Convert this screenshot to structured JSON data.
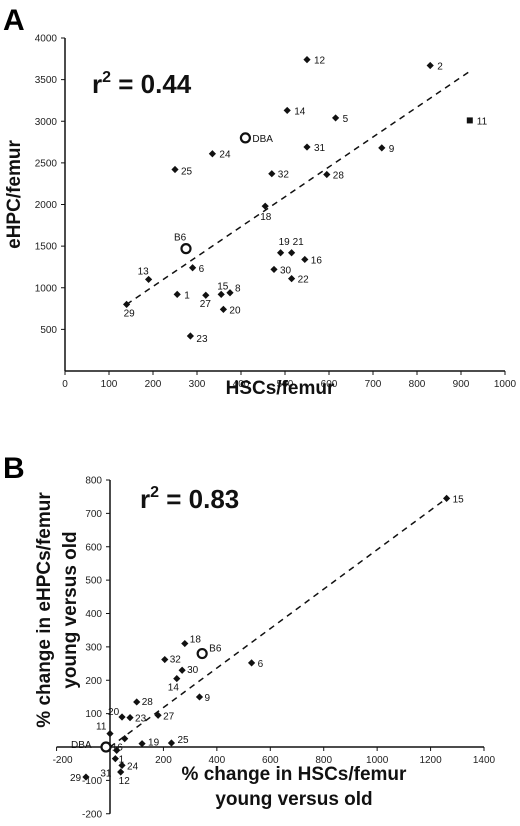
{
  "chart_data": [
    {
      "panel": "A",
      "type": "scatter",
      "xlabel": "HSCs/femur",
      "ylabel": "eHPC/femur",
      "annotation": "r",
      "annotation_sup": "2",
      "annotation_value": " = 0.44",
      "xlim": [
        0,
        1000
      ],
      "ylim": [
        0,
        4000
      ],
      "xticks": [
        0,
        100,
        200,
        300,
        400,
        500,
        600,
        700,
        800,
        900,
        1000
      ],
      "yticks": [
        500,
        1000,
        1500,
        2000,
        2500,
        3000,
        3500,
        4000
      ],
      "trendline": [
        [
          140,
          800
        ],
        [
          920,
          3600
        ]
      ],
      "points": [
        {
          "label": "12",
          "x": 550,
          "y": 3740,
          "marker": "diamond"
        },
        {
          "label": "2",
          "x": 830,
          "y": 3670,
          "marker": "diamond"
        },
        {
          "label": "14",
          "x": 505,
          "y": 3130,
          "marker": "diamond"
        },
        {
          "label": "5",
          "x": 615,
          "y": 3040,
          "marker": "diamond"
        },
        {
          "label": "11",
          "x": 920,
          "y": 3010,
          "marker": "square"
        },
        {
          "label": "DBA",
          "x": 410,
          "y": 2800,
          "marker": "circle"
        },
        {
          "label": "31",
          "x": 550,
          "y": 2690,
          "marker": "diamond"
        },
        {
          "label": "9",
          "x": 720,
          "y": 2680,
          "marker": "diamond"
        },
        {
          "label": "24",
          "x": 335,
          "y": 2610,
          "marker": "diamond"
        },
        {
          "label": "25",
          "x": 250,
          "y": 2420,
          "marker": "diamond"
        },
        {
          "label": "32",
          "x": 470,
          "y": 2370,
          "marker": "diamond"
        },
        {
          "label": "28",
          "x": 595,
          "y": 2360,
          "marker": "diamond"
        },
        {
          "label": "18",
          "x": 455,
          "y": 1980,
          "marker": "diamond"
        },
        {
          "label": "B6",
          "x": 275,
          "y": 1470,
          "marker": "circle"
        },
        {
          "label": "21",
          "x": 515,
          "y": 1420,
          "marker": "diamond"
        },
        {
          "label": "19",
          "x": 490,
          "y": 1420,
          "marker": "diamond"
        },
        {
          "label": "16",
          "x": 545,
          "y": 1340,
          "marker": "diamond"
        },
        {
          "label": "6",
          "x": 290,
          "y": 1240,
          "marker": "diamond"
        },
        {
          "label": "30",
          "x": 475,
          "y": 1220,
          "marker": "diamond"
        },
        {
          "label": "22",
          "x": 515,
          "y": 1110,
          "marker": "diamond"
        },
        {
          "label": "13",
          "x": 190,
          "y": 1100,
          "marker": "diamond"
        },
        {
          "label": "8",
          "x": 375,
          "y": 940,
          "marker": "diamond"
        },
        {
          "label": "15",
          "x": 355,
          "y": 920,
          "marker": "diamond"
        },
        {
          "label": "1",
          "x": 255,
          "y": 920,
          "marker": "diamond"
        },
        {
          "label": "27",
          "x": 320,
          "y": 910,
          "marker": "diamond"
        },
        {
          "label": "29",
          "x": 140,
          "y": 800,
          "marker": "diamond"
        },
        {
          "label": "20",
          "x": 360,
          "y": 740,
          "marker": "diamond"
        },
        {
          "label": "23",
          "x": 285,
          "y": 420,
          "marker": "diamond"
        }
      ]
    },
    {
      "panel": "B",
      "type": "scatter",
      "xlabel_lines": [
        "% change in HSCs/femur",
        "young versus old"
      ],
      "ylabel_lines": [
        "% change in eHPCs/femur",
        "young versus old"
      ],
      "annotation": "r",
      "annotation_sup": "2",
      "annotation_value": " = 0.83",
      "xlim": [
        -200,
        1400
      ],
      "ylim": [
        -200,
        800
      ],
      "xticks": [
        -200,
        200,
        400,
        600,
        800,
        1000,
        1200,
        1400
      ],
      "yticks": [
        -200,
        -100,
        100,
        200,
        300,
        400,
        500,
        600,
        700,
        800
      ],
      "trendline": [
        [
          0,
          0
        ],
        [
          1260,
          745
        ]
      ],
      "points": [
        {
          "label": "15",
          "x": 1260,
          "y": 745,
          "marker": "diamond"
        },
        {
          "label": "18",
          "x": 280,
          "y": 310,
          "marker": "diamond"
        },
        {
          "label": "B6",
          "x": 345,
          "y": 280,
          "marker": "circle"
        },
        {
          "label": "32",
          "x": 205,
          "y": 262,
          "marker": "diamond"
        },
        {
          "label": "6",
          "x": 530,
          "y": 252,
          "marker": "diamond"
        },
        {
          "label": "30",
          "x": 270,
          "y": 230,
          "marker": "diamond"
        },
        {
          "label": "14",
          "x": 250,
          "y": 205,
          "marker": "diamond"
        },
        {
          "label": "9",
          "x": 335,
          "y": 150,
          "marker": "diamond"
        },
        {
          "label": "28",
          "x": 100,
          "y": 135,
          "marker": "diamond"
        },
        {
          "label": "27",
          "x": 180,
          "y": 95,
          "marker": "diamond"
        },
        {
          "label": "20",
          "x": 45,
          "y": 90,
          "marker": "diamond"
        },
        {
          "label": "23",
          "x": 75,
          "y": 88,
          "marker": "diamond"
        },
        {
          "label": "11",
          "x": 0,
          "y": 40,
          "marker": "diamond"
        },
        {
          "label": "25",
          "x": 230,
          "y": 12,
          "marker": "diamond"
        },
        {
          "label": "19",
          "x": 120,
          "y": 10,
          "marker": "diamond"
        },
        {
          "label": "16",
          "x": 55,
          "y": 25,
          "marker": "diamond"
        },
        {
          "label": "DBA",
          "x": -15,
          "y": 0,
          "marker": "circle"
        },
        {
          "label": "1",
          "x": 25,
          "y": -10,
          "marker": "diamond"
        },
        {
          "label": "31",
          "x": 20,
          "y": -35,
          "marker": "diamond"
        },
        {
          "label": "24",
          "x": 45,
          "y": -55,
          "marker": "diamond"
        },
        {
          "label": "12",
          "x": 40,
          "y": -75,
          "marker": "diamond"
        },
        {
          "label": "29",
          "x": -90,
          "y": -90,
          "marker": "diamond"
        }
      ]
    }
  ],
  "panels": {
    "a_letter": "A",
    "b_letter": "B"
  }
}
